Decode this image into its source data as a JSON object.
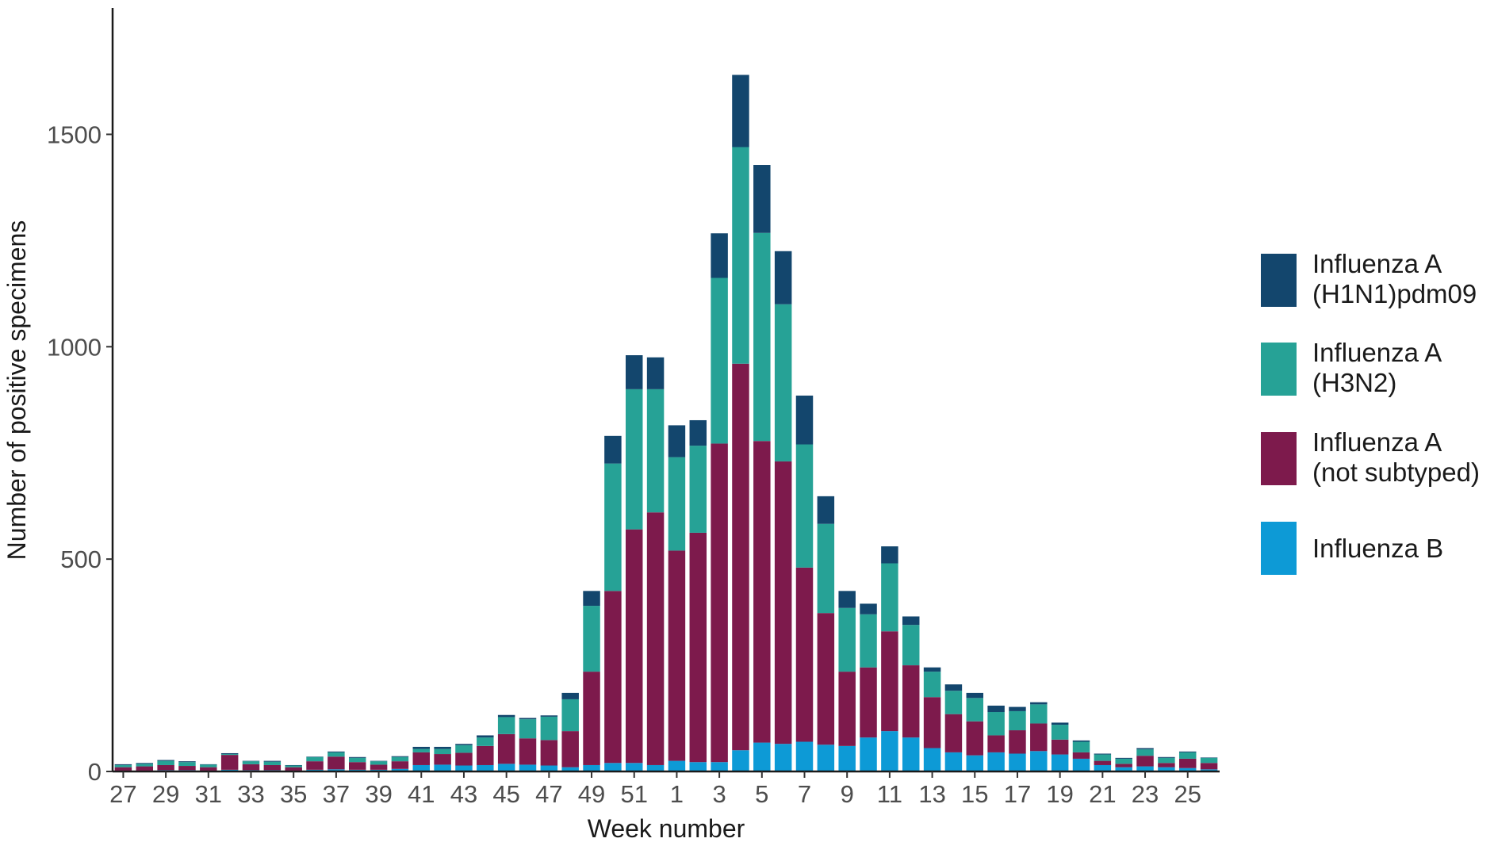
{
  "chart_data": {
    "type": "bar",
    "stacked": true,
    "xlabel": "Week number",
    "ylabel": "Number of positive specimens",
    "ylim": [
      0,
      1800
    ],
    "yticks": [
      0,
      500,
      1000,
      1500
    ],
    "grid": false,
    "legend_position": "right",
    "categories": [
      "27",
      "28",
      "29",
      "30",
      "31",
      "32",
      "33",
      "34",
      "35",
      "36",
      "37",
      "38",
      "39",
      "40",
      "41",
      "42",
      "43",
      "44",
      "45",
      "46",
      "47",
      "48",
      "49",
      "50",
      "51",
      "52",
      "1",
      "2",
      "3",
      "4",
      "5",
      "6",
      "7",
      "8",
      "9",
      "10",
      "11",
      "12",
      "13",
      "14",
      "15",
      "16",
      "17",
      "18",
      "19",
      "20",
      "21",
      "22",
      "23",
      "24",
      "25",
      "26"
    ],
    "xtick_labels": [
      "27",
      "29",
      "31",
      "33",
      "35",
      "37",
      "39",
      "41",
      "43",
      "45",
      "47",
      "49",
      "51",
      "1",
      "3",
      "5",
      "7",
      "9",
      "11",
      "13",
      "15",
      "17",
      "19",
      "21",
      "23",
      "25"
    ],
    "series": [
      {
        "name": "Influenza B",
        "color": "#0d9ad6",
        "values": [
          2,
          2,
          3,
          3,
          2,
          4,
          3,
          3,
          2,
          4,
          5,
          4,
          4,
          6,
          15,
          16,
          14,
          15,
          18,
          16,
          14,
          10,
          15,
          20,
          20,
          15,
          25,
          22,
          22,
          50,
          68,
          65,
          70,
          63,
          60,
          80,
          95,
          80,
          55,
          45,
          38,
          45,
          42,
          48,
          40,
          30,
          15,
          10,
          12,
          10,
          8,
          5
        ]
      },
      {
        "name": "Influenza A (not subtyped)",
        "color": "#7d1a4c",
        "values": [
          8,
          10,
          12,
          10,
          8,
          35,
          14,
          12,
          8,
          20,
          30,
          18,
          12,
          18,
          30,
          25,
          30,
          45,
          70,
          62,
          60,
          85,
          220,
          405,
          550,
          595,
          495,
          540,
          750,
          910,
          710,
          665,
          410,
          310,
          175,
          165,
          235,
          170,
          120,
          90,
          80,
          40,
          55,
          65,
          35,
          15,
          10,
          8,
          25,
          10,
          22,
          15
        ]
      },
      {
        "name": "Influenza A (H3N2)",
        "color": "#26a296",
        "values": [
          5,
          6,
          10,
          9,
          6,
          2,
          7,
          8,
          4,
          10,
          10,
          10,
          8,
          10,
          8,
          12,
          18,
          20,
          40,
          45,
          55,
          75,
          155,
          300,
          330,
          290,
          220,
          205,
          390,
          510,
          490,
          370,
          290,
          210,
          150,
          125,
          160,
          95,
          60,
          55,
          55,
          55,
          45,
          45,
          35,
          25,
          15,
          12,
          15,
          12,
          15,
          12
        ]
      },
      {
        "name": "Influenza A (H1N1)pdm09",
        "color": "#13466d",
        "values": [
          2,
          2,
          2,
          2,
          1,
          2,
          1,
          2,
          1,
          1,
          2,
          2,
          1,
          2,
          5,
          5,
          3,
          5,
          5,
          3,
          3,
          15,
          35,
          65,
          80,
          75,
          75,
          60,
          105,
          170,
          160,
          125,
          115,
          65,
          40,
          25,
          40,
          20,
          10,
          15,
          12,
          15,
          10,
          5,
          5,
          3,
          2,
          2,
          3,
          2,
          2,
          1
        ]
      }
    ],
    "legend": [
      {
        "series": "Influenza A (H1N1)pdm09",
        "line1": "Influenza A",
        "line2": "(H1N1)pdm09",
        "color": "#13466d"
      },
      {
        "series": "Influenza A (H3N2)",
        "line1": "Influenza A",
        "line2": "(H3N2)",
        "color": "#26a296"
      },
      {
        "series": "Influenza A (not subtyped)",
        "line1": "Influenza A",
        "line2": "(not subtyped)",
        "color": "#7d1a4c"
      },
      {
        "series": "Influenza B",
        "line1": "Influenza B",
        "line2": "",
        "color": "#0d9ad6"
      }
    ]
  }
}
